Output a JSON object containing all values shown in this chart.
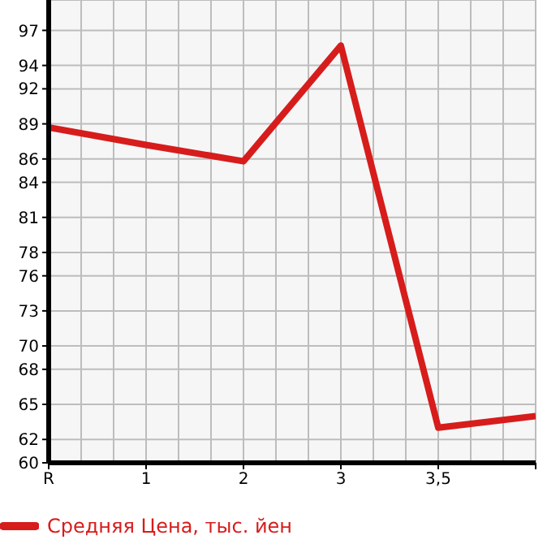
{
  "chart_data": {
    "type": "line",
    "categories": [
      "R",
      "1",
      "2",
      "3",
      "3,5",
      null
    ],
    "series": [
      {
        "name": "Средняя Цена, тыс. йен",
        "color": "#d71c1c",
        "values": [
          88.7,
          87.2,
          85.8,
          95.7,
          63.0,
          64.0
        ]
      }
    ],
    "ylim": [
      60,
      99.6
    ],
    "yticks": [
      60,
      62,
      65,
      68,
      70,
      73,
      76,
      78,
      81,
      84,
      86,
      89,
      92,
      94,
      97
    ],
    "grid": true,
    "legend": "bottom left",
    "marker": "none",
    "line_style": "solid"
  }
}
